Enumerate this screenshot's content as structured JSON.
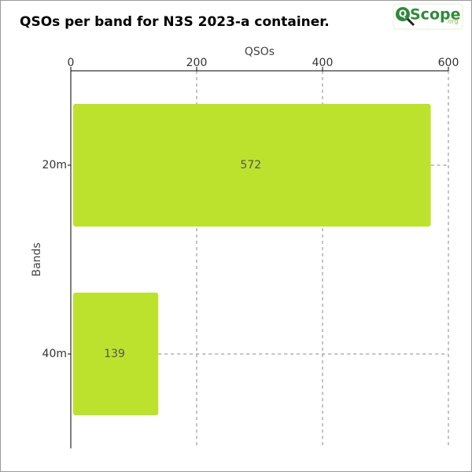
{
  "chart_data": {
    "type": "bar",
    "orientation": "horizontal",
    "title": "QSOs per band for N3S 2023-a container.",
    "logo": {
      "letter": "Q",
      "name": "Scope",
      "suffix": ".org"
    },
    "x_label": "QSOs",
    "y_label": "Bands",
    "categories": [
      "20m",
      "40m"
    ],
    "values": [
      572,
      139
    ],
    "color": "#bde22e",
    "xlim": [
      0,
      600
    ],
    "xticks": [
      0,
      200,
      400,
      600
    ],
    "grid": true
  }
}
